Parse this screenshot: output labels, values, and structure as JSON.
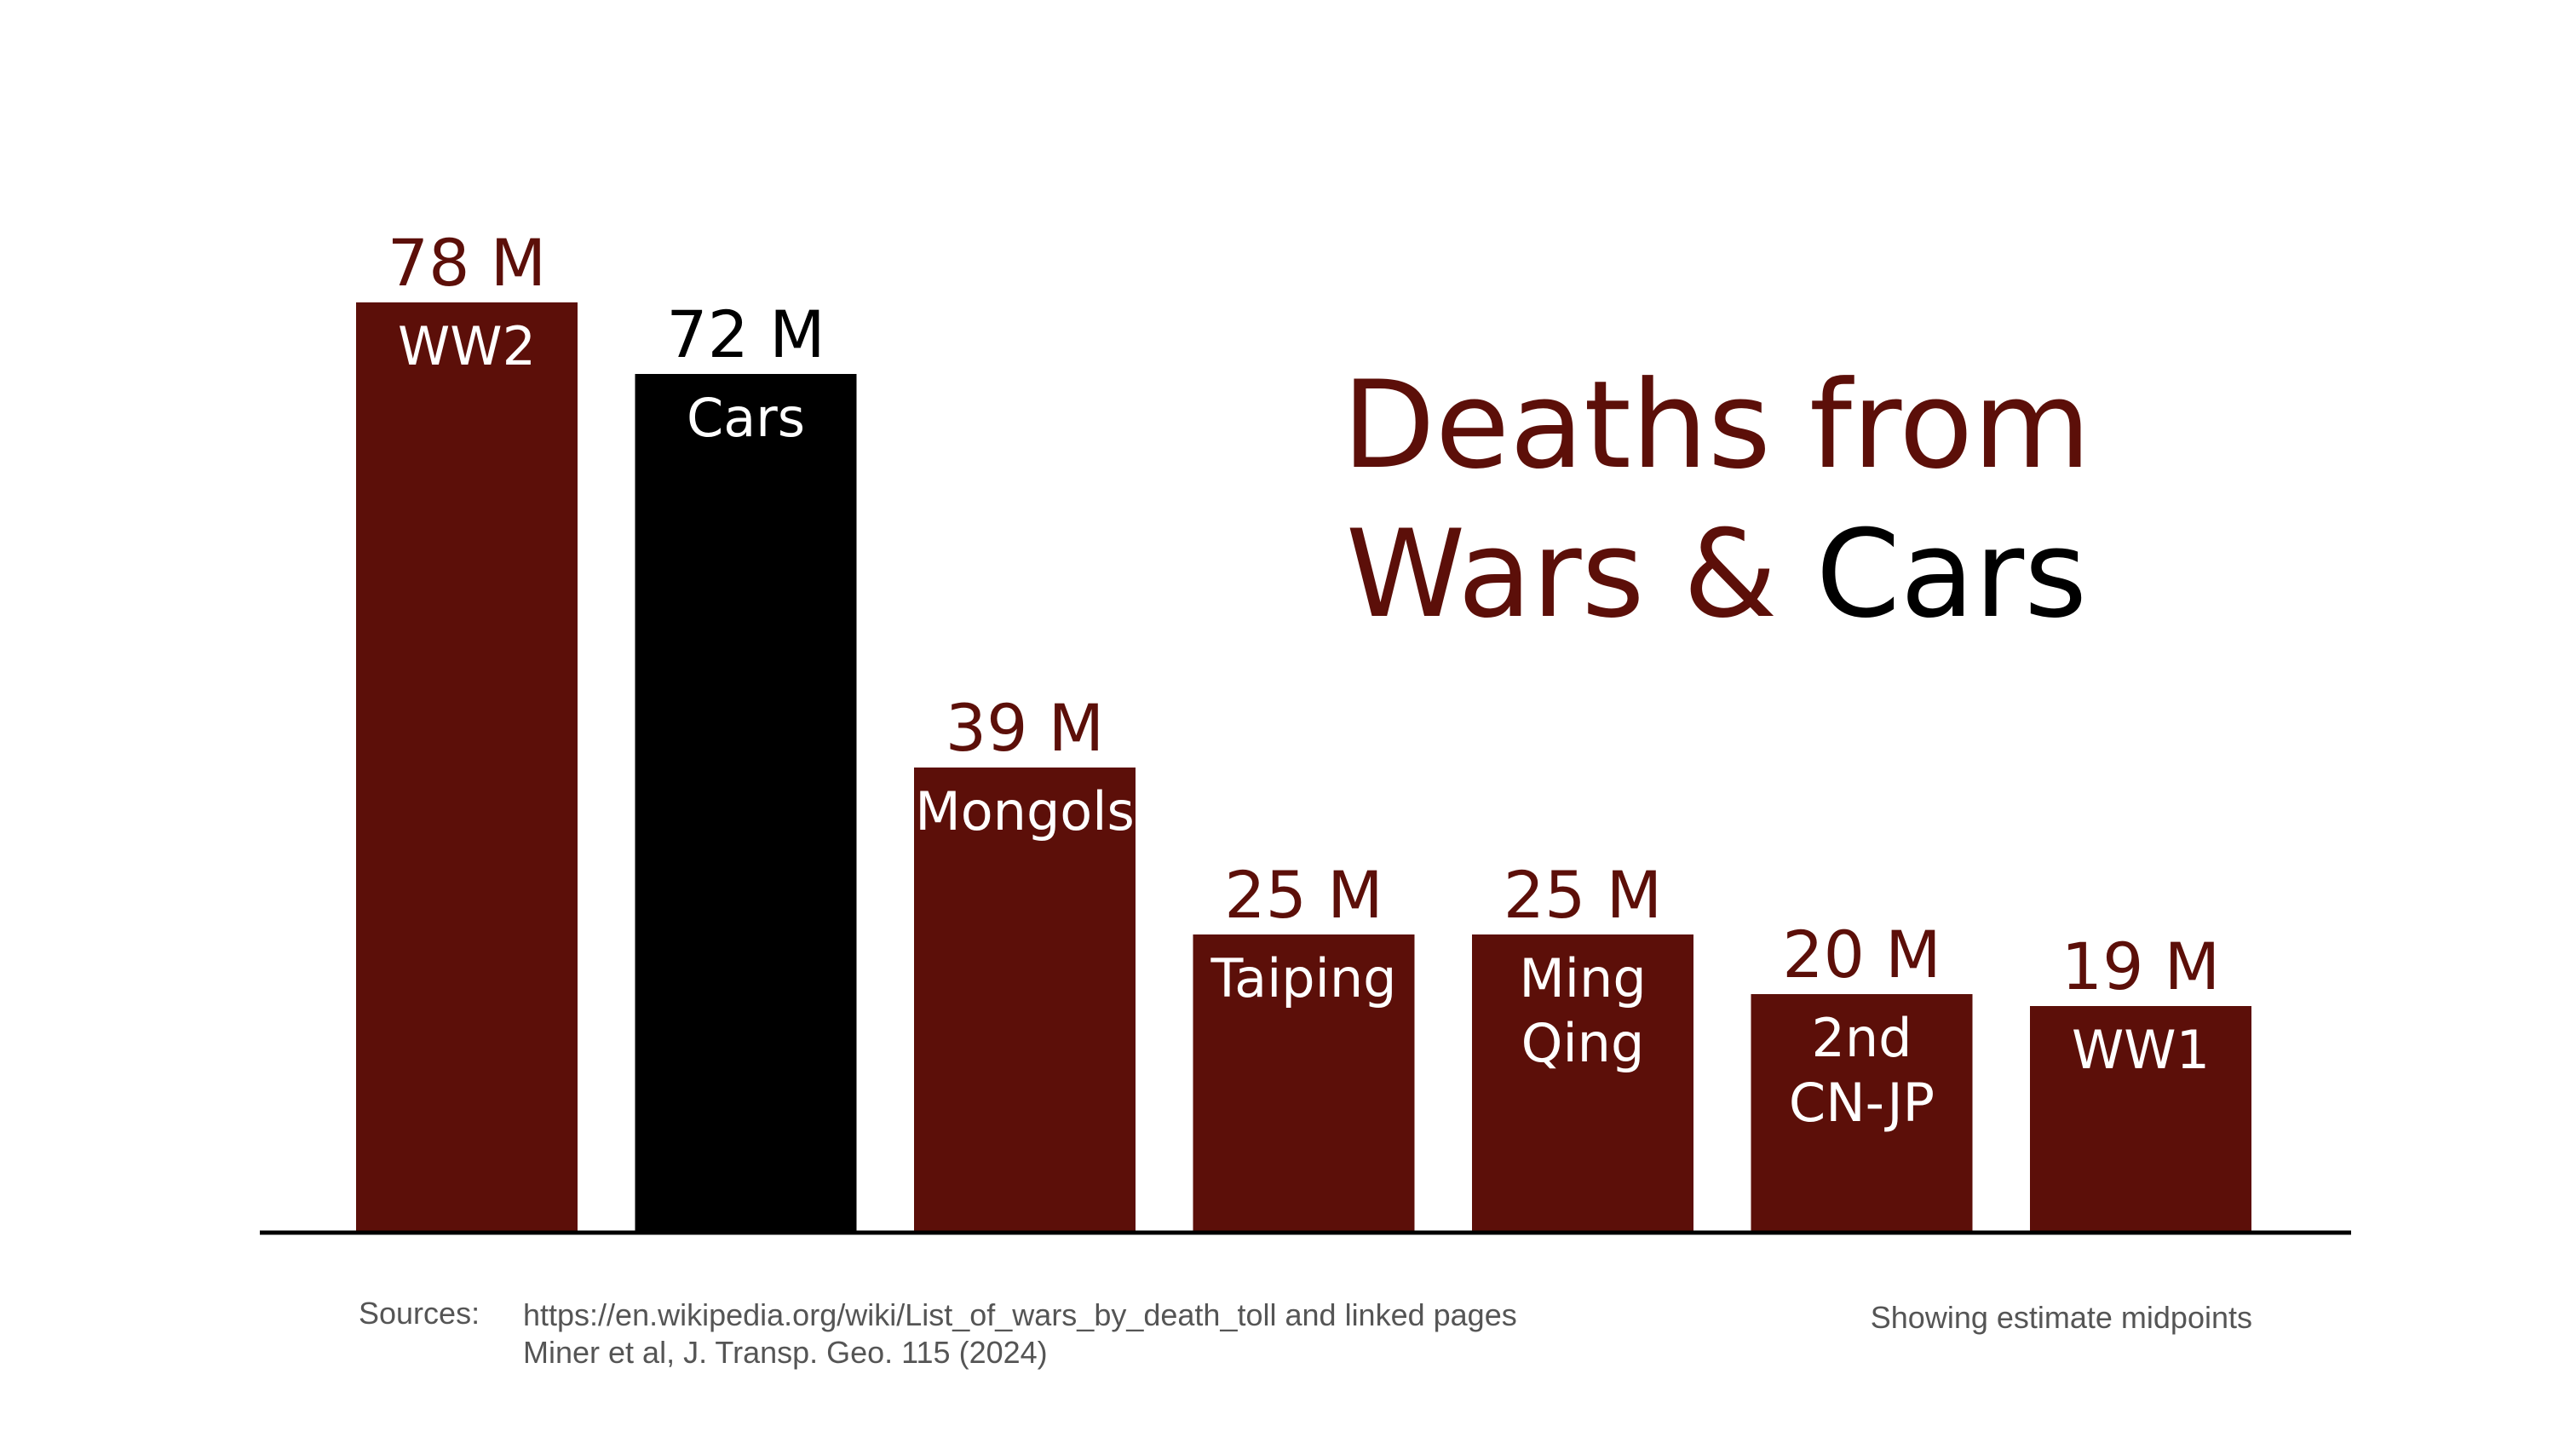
{
  "colors": {
    "war": "#5c0f09",
    "cars": "#000000",
    "bar_text": "#ffffff",
    "footer_text": "#555555",
    "axis": "#000000"
  },
  "chart_data": {
    "type": "bar",
    "title_parts": [
      "Deaths from",
      "Wars &",
      "Cars"
    ],
    "categories": [
      "WW2",
      "Cars",
      "Mongols",
      "Taiping",
      "Ming Qing",
      "2nd CN-JP",
      "WW1"
    ],
    "category_lines": [
      [
        "WW2"
      ],
      [
        "Cars"
      ],
      [
        "Mongols"
      ],
      [
        "Taiping"
      ],
      [
        "Ming",
        "Qing"
      ],
      [
        "2nd",
        "CN-JP"
      ],
      [
        "WW1"
      ]
    ],
    "values": [
      78,
      72,
      39,
      25,
      25,
      20,
      19
    ],
    "value_labels": [
      "78 M",
      "72 M",
      "39 M",
      "25 M",
      "25 M",
      "20 M",
      "19 M"
    ],
    "kinds": [
      "war",
      "cars",
      "war",
      "war",
      "war",
      "war",
      "war"
    ],
    "unit": "M",
    "ylim": [
      0,
      80
    ],
    "grid": false,
    "legend": "none"
  },
  "footer": {
    "sources_label": "Sources:",
    "source_lines": [
      "https://en.wikipedia.org/wiki/List_of_wars_by_death_toll and linked pages",
      "Miner et al, J. Transp. Geo. 115 (2024)"
    ],
    "note": "Showing estimate midpoints"
  }
}
